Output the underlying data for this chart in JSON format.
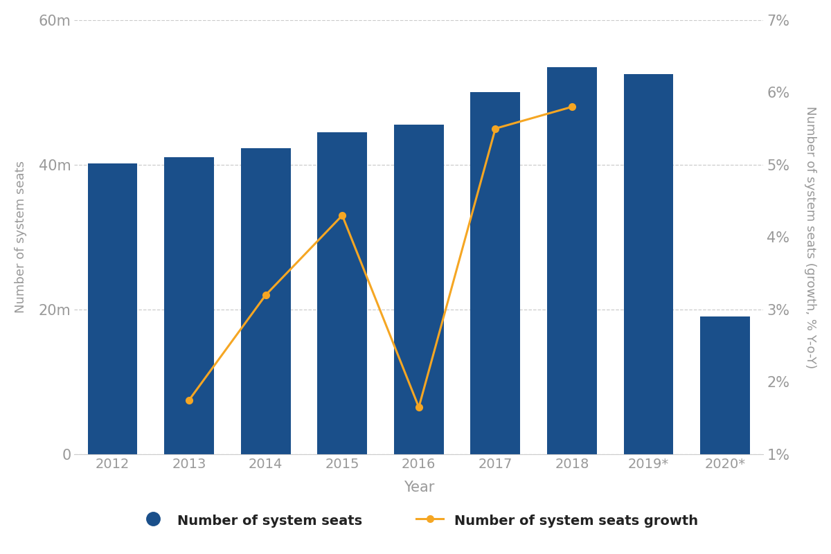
{
  "years": [
    "2012",
    "2013",
    "2014",
    "2015",
    "2016",
    "2017",
    "2018",
    "2019*",
    "2020*"
  ],
  "seats_millions": [
    40.2,
    41.0,
    42.3,
    44.5,
    45.5,
    50.0,
    53.5,
    52.5,
    19.0
  ],
  "growth_pct": [
    null,
    1.75,
    3.2,
    4.3,
    1.65,
    5.5,
    5.8,
    null,
    null
  ],
  "bar_color": "#1a4f8a",
  "line_color": "#f5a623",
  "left_ylabel": "Number of system seats",
  "right_ylabel": "Number of system seats (growth, % Y-o-Y)",
  "xlabel": "Year",
  "left_ylim": [
    0,
    60
  ],
  "right_ylim": [
    1,
    7
  ],
  "left_yticks": [
    0,
    20,
    40,
    60
  ],
  "left_yticklabels": [
    "0",
    "20m",
    "40m",
    "60m"
  ],
  "right_yticks": [
    1,
    2,
    3,
    4,
    5,
    6,
    7
  ],
  "right_yticklabels": [
    "1%",
    "2%",
    "3%",
    "4%",
    "5%",
    "6%",
    "7%"
  ],
  "legend1_label": "Number of system seats",
  "legend2_label": "Number of system seats growth",
  "background_color": "#ffffff",
  "grid_color": "#cccccc",
  "tick_label_color": "#999999",
  "axis_label_color": "#999999",
  "figsize": [
    12,
    8
  ]
}
